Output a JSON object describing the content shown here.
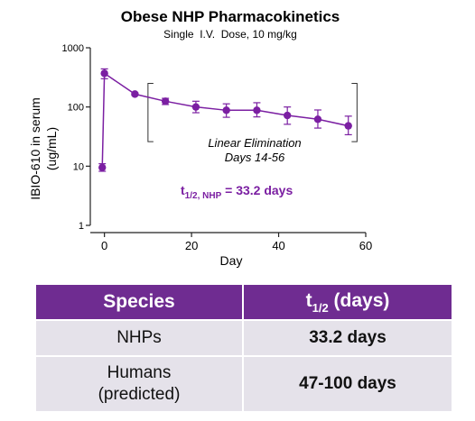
{
  "chart_data": {
    "type": "scatter",
    "title": "Obese NHP Pharmacokinetics",
    "subtitle": "Single  I.V.  Dose, 10 mg/kg",
    "xlabel": "Day",
    "ylabel_line1": "IBIO-610 in serum",
    "ylabel_line2": "(ug/mL)",
    "xlim": [
      -2,
      60
    ],
    "ylim": [
      1,
      1000
    ],
    "yscale": "log",
    "x_ticks": [
      0,
      20,
      40,
      60
    ],
    "y_ticks": [
      1,
      10,
      100,
      1000
    ],
    "y_tick_labels": [
      "1",
      "10",
      "100",
      "1000"
    ],
    "series": [
      {
        "color": "#7b1fa2",
        "x": [
          -0.5,
          0,
          7,
          14,
          21,
          28,
          35,
          42,
          49,
          56
        ],
        "y": [
          9.5,
          370,
          165,
          125,
          100,
          88,
          88,
          72,
          62,
          48
        ],
        "y_err_low": [
          8.2,
          300,
          158,
          110,
          80,
          67,
          68,
          51,
          44,
          34
        ],
        "y_err_high": [
          11,
          440,
          172,
          140,
          125,
          113,
          118,
          100,
          89,
          70
        ]
      }
    ],
    "annotations": {
      "linear_line1": "Linear Elimination",
      "linear_line2": "Days 14-56",
      "halflife_prefix": "t",
      "halflife_sub": "1/2, NHP",
      "halflife_value": " = 33.2 days",
      "bracket_x_range": [
        10,
        58
      ],
      "bracket_y_range": [
        26,
        250
      ]
    }
  },
  "table": {
    "header_species": "Species",
    "header_halflife_main": "t",
    "header_halflife_sub": "1/2",
    "header_halflife_unit": "(days)",
    "rows": [
      {
        "species": "NHPs",
        "value": "33.2 days"
      },
      {
        "species_line1": "Humans",
        "species_line2": "(predicted)",
        "value": "47-100 days"
      }
    ]
  }
}
